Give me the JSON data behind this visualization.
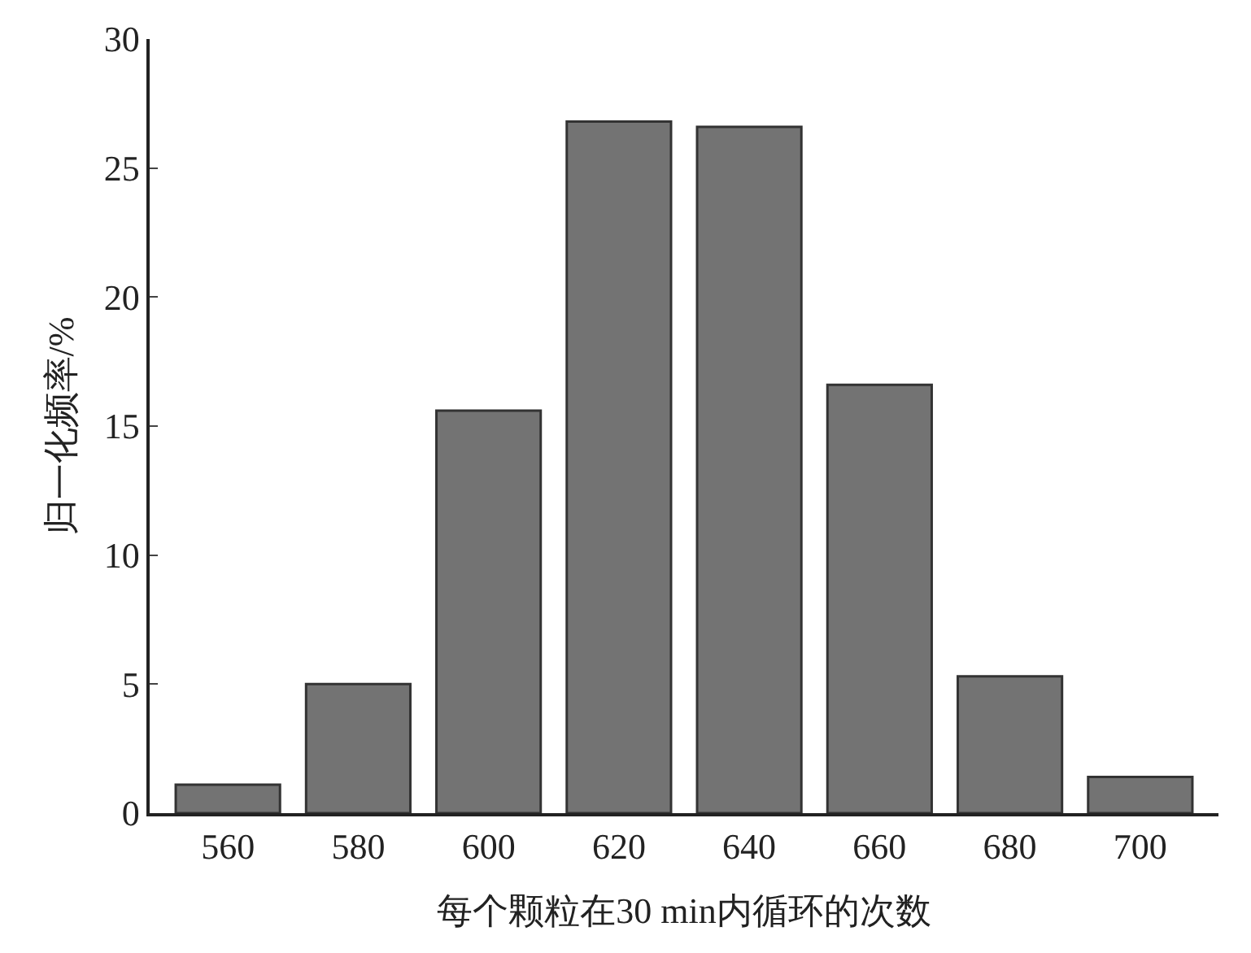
{
  "chart_data": {
    "type": "bar",
    "xlabel": "每个颗粒在30 min内循环的次数",
    "ylabel": "归一化频率/%",
    "categories": [
      "560",
      "580",
      "600",
      "620",
      "640",
      "660",
      "680",
      "700"
    ],
    "values": [
      1.1,
      5.0,
      15.6,
      26.8,
      26.6,
      16.6,
      5.3,
      1.4
    ],
    "color": "#737373",
    "ylim": [
      0,
      30
    ],
    "yticks": [
      0,
      5,
      10,
      15,
      20,
      25,
      30
    ],
    "grid": false,
    "legend": false
  }
}
